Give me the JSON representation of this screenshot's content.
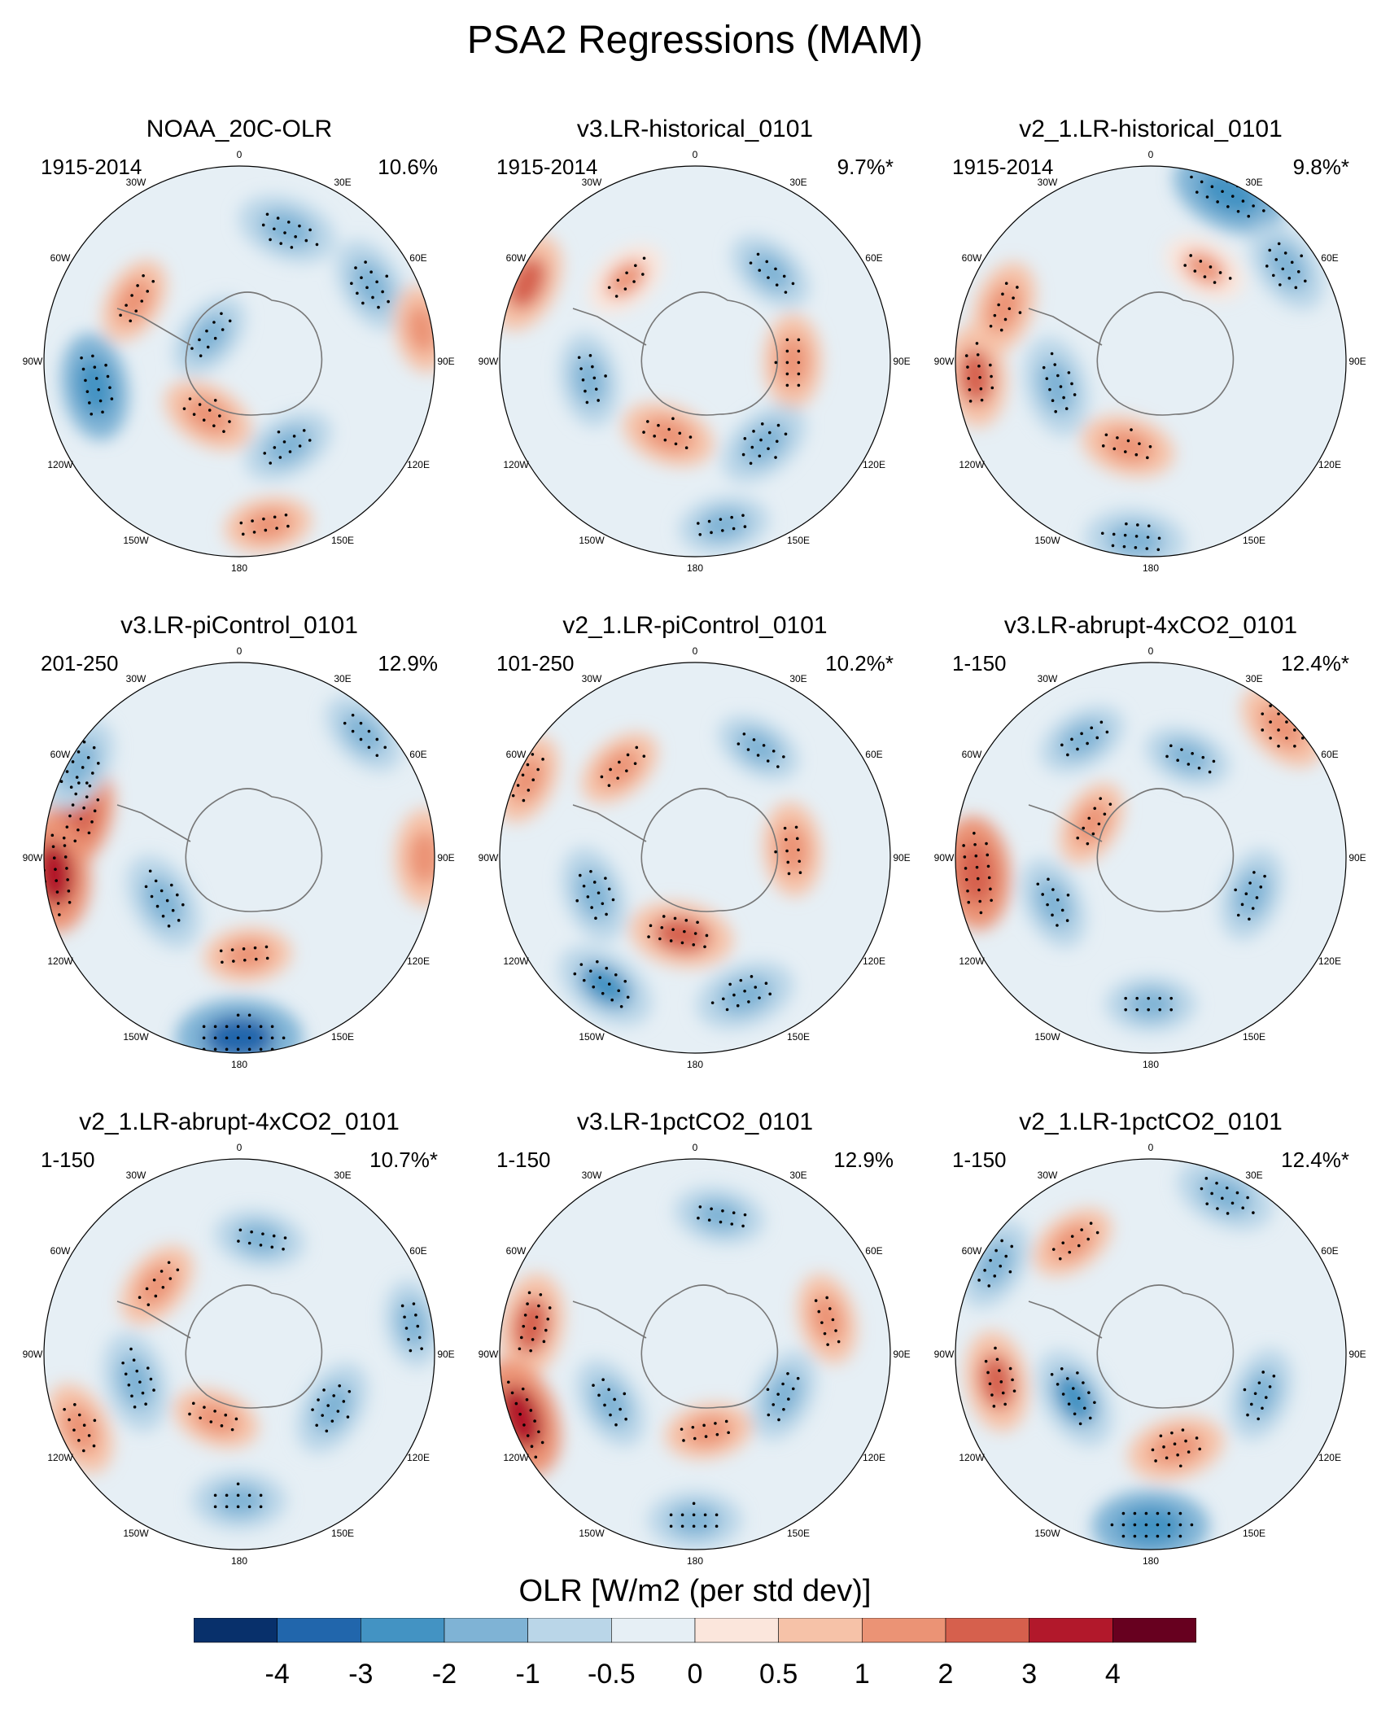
{
  "title": "PSA2 Regressions (MAM)",
  "colors": {
    "scale": [
      "#08306b",
      "#2166ac",
      "#4393c3",
      "#7fb3d5",
      "#bad6e8",
      "#e6eff5",
      "#fbe6dc",
      "#f6c2a8",
      "#eb9375",
      "#d6604d",
      "#b2182b",
      "#67001f"
    ],
    "coast": "#777777",
    "stipple": "#000000"
  },
  "chart_data": [
    {
      "type": "map",
      "title": "NOAA_20C-OLR",
      "period": "1915-2014",
      "variance": "10.6%",
      "longitude_labels": [
        "0",
        "30E",
        "60E",
        "90E",
        "120E",
        "150E",
        "180",
        "150W",
        "120W",
        "90W",
        "60W",
        "30W"
      ],
      "anomalies": [
        {
          "lon": 300,
          "r": 0.62,
          "value": 1.2,
          "sig": true
        },
        {
          "lon": 260,
          "r": 0.75,
          "value": -2.4,
          "sig": true
        },
        {
          "lon": 210,
          "r": 0.32,
          "value": 1.6,
          "sig": true
        },
        {
          "lon": 20,
          "r": 0.72,
          "value": -2.0,
          "sig": true
        },
        {
          "lon": 60,
          "r": 0.78,
          "value": -1.8,
          "sig": true
        },
        {
          "lon": 80,
          "r": 0.95,
          "value": 1.2,
          "sig": false
        },
        {
          "lon": 150,
          "r": 0.5,
          "value": -1.6,
          "sig": true
        },
        {
          "lon": 170,
          "r": 0.85,
          "value": 1.2,
          "sig": true
        },
        {
          "lon": 310,
          "r": 0.2,
          "value": -1.4,
          "sig": true
        }
      ]
    },
    {
      "type": "map",
      "title": "v3.LR-historical_0101",
      "period": "1915-2014",
      "variance": "9.7%*",
      "longitude_labels": [
        "0",
        "30E",
        "60E",
        "90E",
        "120E",
        "150E",
        "180",
        "150W",
        "120W",
        "90W",
        "60W",
        "30W"
      ],
      "anomalies": [
        {
          "lon": 320,
          "r": 0.55,
          "value": 1.0,
          "sig": true
        },
        {
          "lon": 295,
          "r": 0.95,
          "value": 2.0,
          "sig": false
        },
        {
          "lon": 260,
          "r": 0.55,
          "value": -1.6,
          "sig": true
        },
        {
          "lon": 200,
          "r": 0.4,
          "value": 1.6,
          "sig": true
        },
        {
          "lon": 40,
          "r": 0.6,
          "value": -1.4,
          "sig": true
        },
        {
          "lon": 90,
          "r": 0.5,
          "value": 1.6,
          "sig": true
        },
        {
          "lon": 140,
          "r": 0.55,
          "value": -1.8,
          "sig": true
        },
        {
          "lon": 170,
          "r": 0.85,
          "value": -1.4,
          "sig": true
        }
      ]
    },
    {
      "type": "map",
      "title": "v2_1.LR-historical_0101",
      "period": "1915-2014",
      "variance": "9.8%*",
      "longitude_labels": [
        "0",
        "30E",
        "60E",
        "90E",
        "120E",
        "150E",
        "180",
        "150W",
        "120W",
        "90W",
        "60W",
        "30W"
      ],
      "anomalies": [
        {
          "lon": 290,
          "r": 0.8,
          "value": 1.6,
          "sig": true
        },
        {
          "lon": 265,
          "r": 0.9,
          "value": 2.0,
          "sig": true
        },
        {
          "lon": 255,
          "r": 0.5,
          "value": -2.0,
          "sig": true
        },
        {
          "lon": 30,
          "r": 0.55,
          "value": 1.0,
          "sig": true
        },
        {
          "lon": 25,
          "r": 0.95,
          "value": -3.0,
          "sig": true
        },
        {
          "lon": 55,
          "r": 0.85,
          "value": -1.8,
          "sig": true
        },
        {
          "lon": 195,
          "r": 0.45,
          "value": 1.6,
          "sig": true
        },
        {
          "lon": 185,
          "r": 0.92,
          "value": -2.0,
          "sig": true
        }
      ]
    },
    {
      "type": "map",
      "title": "v3.LR-piControl_0101",
      "period": "201-250",
      "variance": "12.9%",
      "longitude_labels": [
        "0",
        "30E",
        "60E",
        "90E",
        "120E",
        "150E",
        "180",
        "150W",
        "120W",
        "90W",
        "60W",
        "30W"
      ],
      "anomalies": [
        {
          "lon": 285,
          "r": 0.85,
          "value": 2.4,
          "sig": true
        },
        {
          "lon": 265,
          "r": 0.95,
          "value": 3.0,
          "sig": true
        },
        {
          "lon": 240,
          "r": 0.45,
          "value": -2.0,
          "sig": true
        },
        {
          "lon": 300,
          "r": 0.95,
          "value": -1.8,
          "sig": true
        },
        {
          "lon": 90,
          "r": 0.95,
          "value": 1.8,
          "sig": false
        },
        {
          "lon": 180,
          "r": 0.92,
          "value": -3.6,
          "sig": true
        },
        {
          "lon": 175,
          "r": 0.5,
          "value": 1.2,
          "sig": true
        },
        {
          "lon": 45,
          "r": 0.9,
          "value": -1.4,
          "sig": true
        }
      ]
    },
    {
      "type": "map",
      "title": "v2_1.LR-piControl_0101",
      "period": "101-250",
      "variance": "10.2%*",
      "longitude_labels": [
        "0",
        "30E",
        "60E",
        "90E",
        "120E",
        "150E",
        "180",
        "150W",
        "120W",
        "90W",
        "60W",
        "30W"
      ],
      "anomalies": [
        {
          "lon": 320,
          "r": 0.6,
          "value": 1.2,
          "sig": true
        },
        {
          "lon": 295,
          "r": 0.95,
          "value": 1.4,
          "sig": true
        },
        {
          "lon": 250,
          "r": 0.55,
          "value": -1.8,
          "sig": true
        },
        {
          "lon": 190,
          "r": 0.4,
          "value": 2.2,
          "sig": true
        },
        {
          "lon": 30,
          "r": 0.65,
          "value": -1.2,
          "sig": true
        },
        {
          "lon": 85,
          "r": 0.5,
          "value": 1.6,
          "sig": true
        },
        {
          "lon": 160,
          "r": 0.75,
          "value": -2.0,
          "sig": true
        },
        {
          "lon": 215,
          "r": 0.8,
          "value": -2.2,
          "sig": true
        }
      ]
    },
    {
      "type": "map",
      "title": "v3.LR-abrupt-4xCO2_0101",
      "period": "1-150",
      "variance": "12.4%*",
      "longitude_labels": [
        "0",
        "30E",
        "60E",
        "90E",
        "120E",
        "150E",
        "180",
        "150W",
        "120W",
        "90W",
        "60W",
        "30W"
      ],
      "anomalies": [
        {
          "lon": 265,
          "r": 0.9,
          "value": 2.8,
          "sig": true
        },
        {
          "lon": 245,
          "r": 0.55,
          "value": -1.6,
          "sig": true
        },
        {
          "lon": 330,
          "r": 0.7,
          "value": -1.4,
          "sig": true
        },
        {
          "lon": 20,
          "r": 0.55,
          "value": -1.2,
          "sig": true
        },
        {
          "lon": 45,
          "r": 0.95,
          "value": 1.8,
          "sig": true
        },
        {
          "lon": 110,
          "r": 0.55,
          "value": -1.6,
          "sig": true
        },
        {
          "lon": 300,
          "r": 0.35,
          "value": 1.2,
          "sig": true
        },
        {
          "lon": 180,
          "r": 0.75,
          "value": -1.4,
          "sig": true
        }
      ]
    },
    {
      "type": "map",
      "title": "v2_1.LR-abrupt-4xCO2_0101",
      "period": "1-150",
      "variance": "10.7%*",
      "longitude_labels": [
        "0",
        "30E",
        "60E",
        "90E",
        "120E",
        "150E",
        "180",
        "150W",
        "120W",
        "90W",
        "60W",
        "30W"
      ],
      "anomalies": [
        {
          "lon": 310,
          "r": 0.55,
          "value": 1.4,
          "sig": true
        },
        {
          "lon": 255,
          "r": 0.55,
          "value": -2.0,
          "sig": true
        },
        {
          "lon": 245,
          "r": 0.9,
          "value": 1.6,
          "sig": true
        },
        {
          "lon": 10,
          "r": 0.6,
          "value": -1.4,
          "sig": true
        },
        {
          "lon": 120,
          "r": 0.55,
          "value": -1.8,
          "sig": true
        },
        {
          "lon": 80,
          "r": 0.9,
          "value": -1.2,
          "sig": true
        },
        {
          "lon": 180,
          "r": 0.75,
          "value": -1.6,
          "sig": true
        },
        {
          "lon": 200,
          "r": 0.35,
          "value": 1.2,
          "sig": true
        }
      ]
    },
    {
      "type": "map",
      "title": "v3.LR-1pctCO2_0101",
      "period": "1-150",
      "variance": "12.9%",
      "longitude_labels": [
        "0",
        "30E",
        "60E",
        "90E",
        "120E",
        "150E",
        "180",
        "150W",
        "120W",
        "90W",
        "60W",
        "30W"
      ],
      "anomalies": [
        {
          "lon": 280,
          "r": 0.85,
          "value": 2.2,
          "sig": true
        },
        {
          "lon": 250,
          "r": 0.95,
          "value": 3.2,
          "sig": true
        },
        {
          "lon": 240,
          "r": 0.5,
          "value": -1.6,
          "sig": true
        },
        {
          "lon": 10,
          "r": 0.72,
          "value": -1.4,
          "sig": true
        },
        {
          "lon": 75,
          "r": 0.7,
          "value": 1.4,
          "sig": true
        },
        {
          "lon": 115,
          "r": 0.5,
          "value": -1.6,
          "sig": true
        },
        {
          "lon": 180,
          "r": 0.85,
          "value": -1.6,
          "sig": true
        },
        {
          "lon": 170,
          "r": 0.4,
          "value": 1.2,
          "sig": true
        }
      ]
    },
    {
      "type": "map",
      "title": "v2_1.LR-1pctCO2_0101",
      "period": "1-150",
      "variance": "12.4%*",
      "longitude_labels": [
        "0",
        "30E",
        "60E",
        "90E",
        "120E",
        "150E",
        "180",
        "150W",
        "120W",
        "90W",
        "60W",
        "30W"
      ],
      "anomalies": [
        {
          "lon": 260,
          "r": 0.8,
          "value": 2.0,
          "sig": true
        },
        {
          "lon": 240,
          "r": 0.45,
          "value": -2.2,
          "sig": true
        },
        {
          "lon": 325,
          "r": 0.7,
          "value": 1.2,
          "sig": true
        },
        {
          "lon": 25,
          "r": 0.9,
          "value": -2.0,
          "sig": true
        },
        {
          "lon": 110,
          "r": 0.6,
          "value": -1.6,
          "sig": true
        },
        {
          "lon": 165,
          "r": 0.5,
          "value": 1.8,
          "sig": true
        },
        {
          "lon": 180,
          "r": 0.88,
          "value": -3.0,
          "sig": true
        },
        {
          "lon": 300,
          "r": 0.92,
          "value": -1.6,
          "sig": true
        }
      ]
    }
  ],
  "colorbar": {
    "title": "OLR [W/m2 (per std dev)]",
    "ticks": [
      "-4",
      "-3",
      "-2",
      "-1",
      "-0.5",
      "0",
      "0.5",
      "1",
      "2",
      "3",
      "4"
    ]
  }
}
